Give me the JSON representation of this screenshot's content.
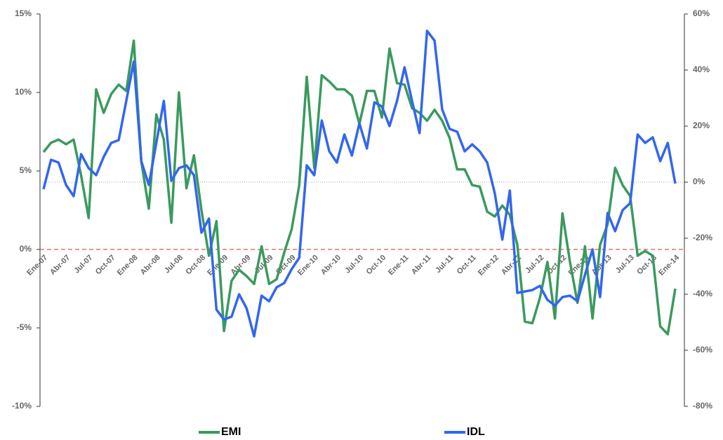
{
  "chart_data": {
    "type": "line",
    "categories": [
      "Ene-07",
      null,
      null,
      "Abr-07",
      null,
      null,
      "Jul-07",
      null,
      null,
      "Oct-07",
      null,
      null,
      "Ene-08",
      null,
      null,
      "Abr-08",
      null,
      null,
      "Jul-08",
      null,
      null,
      "Oct-08",
      null,
      null,
      "Ene-09",
      null,
      null,
      "Abr-09",
      null,
      null,
      "Jul-09",
      null,
      null,
      "Oct-09",
      null,
      null,
      "Ene-10",
      null,
      null,
      "Abr-10",
      null,
      null,
      "Jul-10",
      null,
      null,
      "Oct-10",
      null,
      null,
      "Ene-11",
      null,
      null,
      "Abr-11",
      null,
      null,
      "Jul-11",
      null,
      null,
      "Oct-11",
      null,
      null,
      "Ene-12",
      null,
      null,
      "Abr-12",
      null,
      null,
      "Jul-12",
      null,
      null,
      "Oct-12",
      null,
      null,
      "Ene-13",
      null,
      null,
      "Abr-13",
      null,
      null,
      "Jul-13",
      null,
      null,
      "Oct-13",
      null,
      null,
      "Ene-14"
    ],
    "series": [
      {
        "name": "EMI",
        "color": "#3a9a5e",
        "axis": "y",
        "values": [
          6.2,
          6.8,
          7.0,
          6.7,
          7.0,
          4.7,
          2.0,
          10.2,
          8.7,
          9.9,
          10.5,
          10.1,
          13.3,
          5.6,
          2.6,
          8.6,
          7.0,
          1.7,
          10.0,
          3.9,
          6.0,
          2.5,
          -0.4,
          1.8,
          -5.2,
          -2.0,
          -1.3,
          -1.7,
          -2.2,
          0.2,
          -2.2,
          -1.9,
          -0.2,
          1.3,
          4.1,
          11.0,
          5.2,
          11.1,
          10.7,
          10.2,
          10.2,
          9.8,
          8.0,
          10.1,
          10.1,
          8.4,
          12.8,
          10.6,
          10.5,
          9.0,
          8.7,
          8.2,
          8.9,
          8.2,
          7.1,
          5.1,
          5.1,
          4.1,
          4.0,
          2.4,
          2.1,
          2.8,
          2.2,
          0.3,
          -4.6,
          -4.7,
          -3.1,
          -0.8,
          -4.4,
          2.3,
          -0.8,
          -3.4,
          0.2,
          -4.4,
          0.3,
          1.6,
          5.2,
          4.1,
          3.4,
          -0.4,
          -0.1,
          -0.4,
          -4.9,
          -5.4,
          -2.5
        ]
      },
      {
        "name": "IDL",
        "color": "#3366ee",
        "axis": "y2",
        "values": [
          -2.5,
          8,
          7,
          -1,
          -5,
          10,
          5,
          2.5,
          9,
          14,
          15,
          29,
          43,
          7.5,
          -1,
          14,
          29,
          0.5,
          5,
          6,
          2.5,
          -18,
          -13,
          -45.5,
          -49,
          -48,
          -40,
          -45,
          -55,
          -40.5,
          -42.5,
          -37.5,
          -36,
          -31,
          -27,
          6,
          2.5,
          22,
          11,
          7,
          17,
          9.5,
          21,
          12,
          28.5,
          27,
          20,
          29,
          41,
          29,
          17.5,
          54,
          50.5,
          26,
          19,
          18,
          11,
          13.5,
          11,
          7,
          -4,
          -20.5,
          -3,
          -39.5,
          -39,
          -38.5,
          -37,
          -42,
          -44,
          -41,
          -40.5,
          -42.5,
          -33,
          -24,
          -41,
          -11,
          -17.5,
          -10,
          -7.5,
          17,
          14,
          16,
          7.5,
          14,
          -0.5
        ]
      }
    ],
    "ylim": [
      -10,
      15
    ],
    "yticks": [
      {
        "value": -10,
        "label": "-10%"
      },
      {
        "value": -5,
        "label": "-5%"
      },
      {
        "value": 0,
        "label": "0%"
      },
      {
        "value": 5,
        "label": "5%"
      },
      {
        "value": 10,
        "label": "10%"
      },
      {
        "value": 15,
        "label": "15%"
      }
    ],
    "y2lim": [
      -80,
      60
    ],
    "y2ticks": [
      {
        "value": -80,
        "label": "-80%"
      },
      {
        "value": -60,
        "label": "-60%"
      },
      {
        "value": -40,
        "label": "-40%"
      },
      {
        "value": -20,
        "label": "-20%"
      },
      {
        "value": 0,
        "label": "0%"
      },
      {
        "value": 20,
        "label": "20%"
      },
      {
        "value": 40,
        "label": "40%"
      },
      {
        "value": 60,
        "label": "60%"
      }
    ],
    "reference_lines": [
      {
        "axis": "y",
        "value": 0,
        "color": "#e05555",
        "style": "dashed"
      },
      {
        "axis": "y2",
        "value": 0,
        "color": "#888888",
        "style": "dotted"
      }
    ],
    "legend": "bottom"
  }
}
